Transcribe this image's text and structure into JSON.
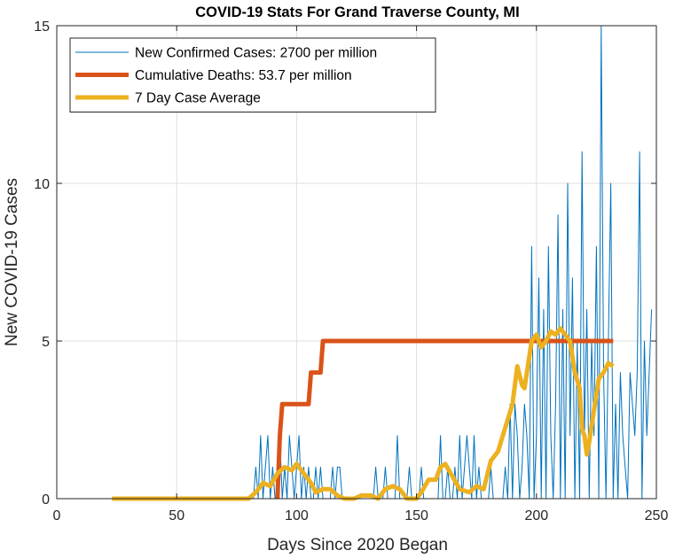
{
  "chart_data": {
    "type": "line",
    "title": "COVID-19 Stats For Grand Traverse County, MI",
    "xlabel": "Days Since 2020 Began",
    "ylabel": "New COVID-19 Cases",
    "xlim": [
      0,
      250
    ],
    "ylim": [
      0,
      15
    ],
    "xticks": [
      0,
      50,
      100,
      150,
      200,
      250
    ],
    "yticks": [
      0,
      5,
      10,
      15
    ],
    "grid": true,
    "legend_position": "top-left",
    "series": [
      {
        "name": "New Confirmed Cases: 2700 per million",
        "color": "#0072BD",
        "line_width": "thin",
        "x_start": 23,
        "values": [
          0,
          0,
          0,
          0,
          0,
          0,
          0,
          0,
          0,
          0,
          0,
          0,
          0,
          0,
          0,
          0,
          0,
          0,
          0,
          0,
          0,
          0,
          0,
          0,
          0,
          0,
          0,
          0,
          0,
          0,
          0,
          0,
          0,
          0,
          0,
          0,
          0,
          0,
          0,
          0,
          0,
          0,
          0,
          0,
          0,
          0,
          0,
          0,
          0,
          0,
          0,
          0,
          0,
          0,
          0,
          0,
          0,
          0,
          0,
          0,
          1,
          0,
          2,
          0,
          1,
          2,
          0,
          1,
          0,
          0,
          2,
          0,
          1,
          0,
          2,
          1,
          0,
          1,
          2,
          0,
          1,
          0,
          1,
          0,
          0,
          1,
          0,
          1,
          0,
          0,
          0,
          0,
          1,
          0,
          1,
          1,
          0,
          0,
          0,
          0,
          0,
          0,
          0,
          0,
          0,
          0,
          0,
          0,
          0,
          0,
          1,
          0,
          0,
          0,
          1,
          0,
          0,
          0,
          0,
          2,
          0,
          0,
          0,
          0,
          1,
          0,
          0,
          0,
          0,
          1,
          0,
          0,
          0,
          0,
          0,
          0,
          0,
          2,
          0,
          0,
          1,
          0,
          0,
          1,
          0,
          2,
          0,
          1,
          2,
          1,
          0,
          2,
          0,
          1,
          0,
          0,
          0,
          0,
          1,
          0,
          0,
          0,
          0,
          0,
          1,
          0,
          3,
          0,
          3,
          2,
          0,
          1,
          3,
          2,
          0,
          8,
          0,
          2,
          7,
          0,
          6,
          0,
          8,
          2,
          0,
          3,
          9,
          0,
          6,
          0,
          10,
          2,
          7,
          0,
          5,
          0,
          11,
          2,
          6,
          0,
          5,
          2,
          8,
          0,
          15,
          4,
          0,
          5,
          10,
          0,
          3,
          0,
          4,
          2,
          1,
          0,
          4,
          3,
          2,
          4,
          11,
          0,
          5,
          2,
          4,
          6
        ]
      },
      {
        "name": "Cumulative Deaths: 53.7 per million",
        "color": "#D95319",
        "line_width": "thick",
        "points": [
          [
            92,
            0
          ],
          [
            93,
            2
          ],
          [
            94,
            3
          ],
          [
            105,
            3
          ],
          [
            106,
            4
          ],
          [
            110,
            4
          ],
          [
            111,
            5
          ],
          [
            232,
            5
          ]
        ]
      },
      {
        "name": "7 Day Case Average",
        "color": "#EDB120",
        "line_width": "thick",
        "points": [
          [
            23,
            0
          ],
          [
            80,
            0
          ],
          [
            83,
            0.2
          ],
          [
            86,
            0.5
          ],
          [
            89,
            0.4
          ],
          [
            92,
            0.8
          ],
          [
            95,
            1.0
          ],
          [
            98,
            0.9
          ],
          [
            100,
            1.1
          ],
          [
            103,
            0.8
          ],
          [
            106,
            0.5
          ],
          [
            108,
            0.2
          ],
          [
            111,
            0.3
          ],
          [
            114,
            0.3
          ],
          [
            117,
            0.1
          ],
          [
            120,
            0.0
          ],
          [
            124,
            0.0
          ],
          [
            127,
            0.1
          ],
          [
            131,
            0.1
          ],
          [
            134,
            0.0
          ],
          [
            137,
            0.3
          ],
          [
            140,
            0.4
          ],
          [
            143,
            0.3
          ],
          [
            146,
            0.0
          ],
          [
            150,
            0.0
          ],
          [
            152,
            0.2
          ],
          [
            155,
            0.6
          ],
          [
            158,
            0.6
          ],
          [
            160,
            1.0
          ],
          [
            162,
            1.1
          ],
          [
            165,
            0.7
          ],
          [
            168,
            0.3
          ],
          [
            172,
            0.2
          ],
          [
            175,
            0.4
          ],
          [
            178,
            0.3
          ],
          [
            181,
            1.2
          ],
          [
            184,
            1.5
          ],
          [
            186,
            2.0
          ],
          [
            188,
            2.5
          ],
          [
            190,
            3.0
          ],
          [
            192,
            4.2
          ],
          [
            194,
            3.6
          ],
          [
            195,
            3.5
          ],
          [
            197,
            4.5
          ],
          [
            198,
            5.0
          ],
          [
            200,
            5.2
          ],
          [
            202,
            4.8
          ],
          [
            204,
            5.0
          ],
          [
            206,
            5.3
          ],
          [
            208,
            5.2
          ],
          [
            210,
            5.4
          ],
          [
            212,
            5.2
          ],
          [
            214,
            5.0
          ],
          [
            216,
            4.0
          ],
          [
            218,
            3.5
          ],
          [
            219,
            2.2
          ],
          [
            220,
            2.0
          ],
          [
            221,
            1.4
          ],
          [
            222,
            1.8
          ],
          [
            224,
            2.8
          ],
          [
            226,
            3.8
          ],
          [
            228,
            4.0
          ],
          [
            230,
            4.3
          ],
          [
            232,
            4.2
          ]
        ]
      }
    ]
  }
}
